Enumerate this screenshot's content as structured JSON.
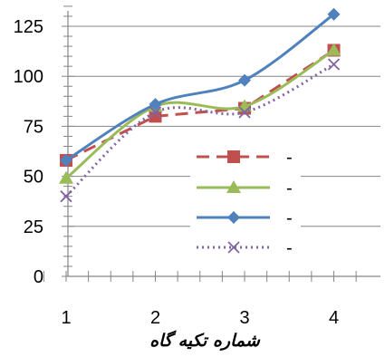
{
  "chart_data": {
    "type": "line",
    "title": "",
    "xlabel": "شماره تکیه گاه",
    "ylabel": "",
    "x": [
      1,
      2,
      3,
      4
    ],
    "x_tick_labels": [
      "1",
      "2",
      "3",
      "4"
    ],
    "xlim": [
      0.75,
      4.4
    ],
    "ylim": [
      0,
      135
    ],
    "y_ticks": [
      0,
      25,
      50,
      75,
      100,
      125
    ],
    "y_tick_labels": [
      "0",
      "25",
      "50",
      "75",
      "100",
      "125"
    ],
    "grid": "horizontal",
    "legend_position": "right",
    "series": [
      {
        "name": "-",
        "values": [
          58,
          80,
          84,
          113
        ],
        "color": "#c0504d",
        "marker": "square",
        "dash": "dashed",
        "smooth": false
      },
      {
        "name": "-",
        "values": [
          49,
          85,
          85,
          113
        ],
        "color": "#9bbb59",
        "marker": "triangle",
        "dash": "solid",
        "smooth": true
      },
      {
        "name": "-",
        "values": [
          58,
          86,
          98,
          131
        ],
        "color": "#4f81bd",
        "marker": "diamond",
        "dash": "solid",
        "smooth": true
      },
      {
        "name": "-",
        "values": [
          40,
          82,
          82,
          106
        ],
        "color": "#8064a2",
        "marker": "x",
        "dash": "dotted",
        "smooth": true
      }
    ]
  }
}
